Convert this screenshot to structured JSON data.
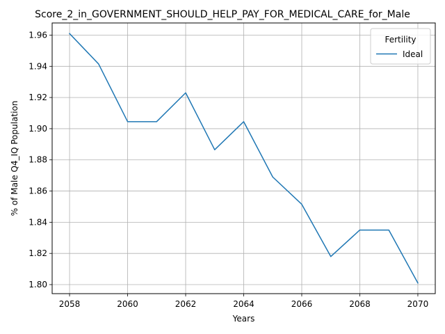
{
  "chart_data": {
    "type": "line",
    "title": "Score_2_in_GOVERNMENT_SHOULD_HELP_PAY_FOR_MEDICAL_CARE_for_Male",
    "xlabel": "Years",
    "ylabel": "% of Male Q4_IQ Population",
    "xlim": [
      2057.4,
      2070.6
    ],
    "ylim": [
      1.7942,
      1.9678
    ],
    "xticks": [
      2058,
      2060,
      2062,
      2064,
      2066,
      2068,
      2070
    ],
    "yticks": [
      1.8,
      1.82,
      1.84,
      1.86,
      1.88,
      1.9,
      1.92,
      1.94,
      1.96
    ],
    "xtick_labels": [
      "2058",
      "2060",
      "2062",
      "2064",
      "2066",
      "2068",
      "2070"
    ],
    "ytick_labels": [
      "1.80",
      "1.82",
      "1.84",
      "1.86",
      "1.88",
      "1.90",
      "1.92",
      "1.94",
      "1.96"
    ],
    "grid": true,
    "legend": {
      "title": "Fertility",
      "placement": "top-right"
    },
    "x": [
      2058,
      2059,
      2060,
      2061,
      2062,
      2063,
      2064,
      2065,
      2066,
      2067,
      2068,
      2069,
      2070
    ],
    "series": [
      {
        "name": "Ideal",
        "color": "#1f77b4",
        "values": [
          1.961,
          1.9415,
          1.9045,
          1.9045,
          1.923,
          1.8865,
          1.9045,
          1.869,
          1.8515,
          1.818,
          1.835,
          1.835,
          1.801
        ]
      }
    ]
  }
}
